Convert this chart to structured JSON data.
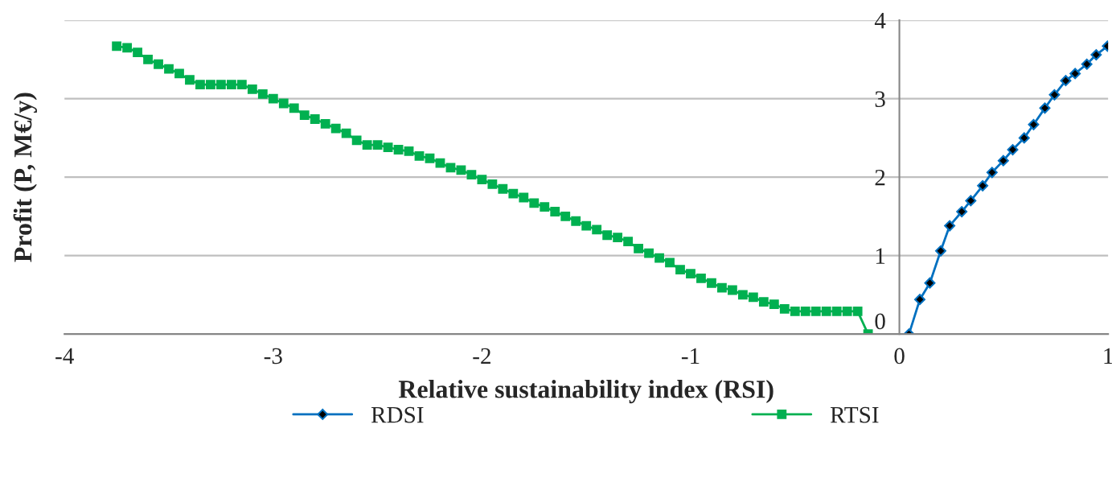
{
  "chart_data": {
    "type": "line",
    "xlabel": "Relative sustainability index (RSI)",
    "ylabel": "Profit (P, M€/y)",
    "xlim": [
      -4,
      1
    ],
    "xticks": [
      -4,
      -3,
      -2,
      -1,
      0,
      1
    ],
    "ylim": [
      0,
      4
    ],
    "yticks": [
      0,
      1,
      2,
      3,
      4
    ],
    "grid": "y",
    "legend": "bottom",
    "series": [
      {
        "name": "RDSI",
        "color": "#0070c0",
        "marker": "diamond",
        "x": [
          0.046,
          0.098,
          0.146,
          0.198,
          0.241,
          0.299,
          0.342,
          0.399,
          0.444,
          0.498,
          0.543,
          0.598,
          0.643,
          0.697,
          0.743,
          0.797,
          0.842,
          0.898,
          0.943,
          0.997
        ],
        "values": [
          0,
          0.44,
          0.65,
          1.06,
          1.38,
          1.56,
          1.7,
          1.89,
          2.06,
          2.21,
          2.35,
          2.5,
          2.67,
          2.88,
          3.05,
          3.23,
          3.32,
          3.44,
          3.56,
          3.67
        ]
      },
      {
        "name": "RTSI",
        "color": "#00b050",
        "marker": "square",
        "x": [
          -3.75,
          -3.7,
          -3.65,
          -3.6,
          -3.55,
          -3.5,
          -3.45,
          -3.4,
          -3.35,
          -3.3,
          -3.25,
          -3.2,
          -3.15,
          -3.1,
          -3.05,
          -3.0,
          -2.95,
          -2.9,
          -2.85,
          -2.8,
          -2.75,
          -2.7,
          -2.65,
          -2.6,
          -2.55,
          -2.5,
          -2.45,
          -2.4,
          -2.35,
          -2.3,
          -2.25,
          -2.2,
          -2.15,
          -2.1,
          -2.05,
          -2.0,
          -1.95,
          -1.9,
          -1.85,
          -1.8,
          -1.75,
          -1.7,
          -1.65,
          -1.6,
          -1.55,
          -1.5,
          -1.45,
          -1.4,
          -1.35,
          -1.3,
          -1.25,
          -1.2,
          -1.15,
          -1.1,
          -1.05,
          -1.0,
          -0.95,
          -0.9,
          -0.85,
          -0.8,
          -0.75,
          -0.7,
          -0.65,
          -0.6,
          -0.55,
          -0.5,
          -0.45,
          -0.4,
          -0.35,
          -0.3,
          -0.25,
          -0.2,
          -0.15
        ],
        "values": [
          3.67,
          3.65,
          3.59,
          3.5,
          3.44,
          3.38,
          3.32,
          3.24,
          3.18,
          3.18,
          3.18,
          3.18,
          3.18,
          3.12,
          3.06,
          3.0,
          2.94,
          2.88,
          2.79,
          2.74,
          2.68,
          2.62,
          2.56,
          2.47,
          2.41,
          2.41,
          2.38,
          2.35,
          2.33,
          2.27,
          2.24,
          2.18,
          2.12,
          2.09,
          2.03,
          1.97,
          1.91,
          1.85,
          1.79,
          1.74,
          1.67,
          1.62,
          1.56,
          1.5,
          1.44,
          1.38,
          1.33,
          1.26,
          1.23,
          1.18,
          1.09,
          1.03,
          0.97,
          0.91,
          0.82,
          0.77,
          0.71,
          0.65,
          0.59,
          0.56,
          0.5,
          0.47,
          0.41,
          0.38,
          0.32,
          0.29,
          0.29,
          0.29,
          0.29,
          0.29,
          0.29,
          0.29,
          0
        ]
      }
    ]
  }
}
